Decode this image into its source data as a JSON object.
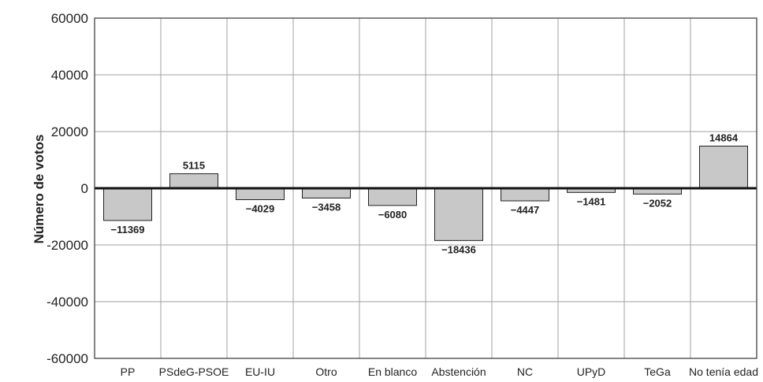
{
  "chart_data": {
    "type": "bar",
    "ylabel": "Número de votos",
    "ylim": [
      -60000,
      60000
    ],
    "yticks": [
      "60000",
      "40000",
      "20000",
      "0",
      "-20000",
      "-40000",
      "-60000"
    ],
    "categories": [
      "PP",
      "PSdeG-PSOE",
      "EU-IU",
      "Otro",
      "En blanco",
      "Abstención",
      "NC",
      "UPyD",
      "TeGa",
      "No tenía edad"
    ],
    "values": [
      -11369,
      5115,
      -4029,
      -3458,
      -6080,
      -18436,
      -4447,
      -1481,
      -2052,
      14864
    ],
    "data_labels": [
      "−11369",
      "5115",
      "−4029",
      "−3458",
      "−6080",
      "−18436",
      "−4447",
      "−1481",
      "−2052",
      "14864"
    ],
    "grid": true,
    "colors": {
      "bar_fill": "#c8c8c8",
      "bar_stroke": "#222222",
      "grid": "#a0a0a0",
      "zero_line": "#111111"
    }
  }
}
